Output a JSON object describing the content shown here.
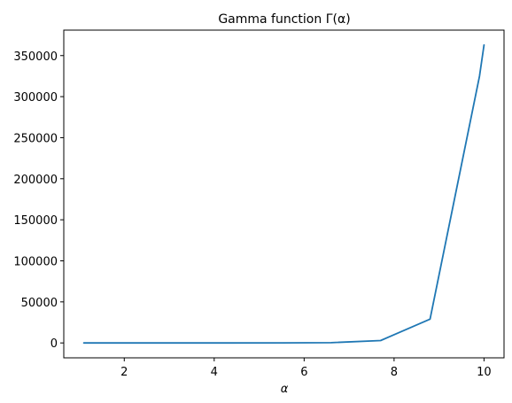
{
  "chart_data": {
    "type": "line",
    "title": "Gamma function Γ(α)",
    "xlabel": "α",
    "ylabel": "",
    "xlim": [
      0.655,
      10.445
    ],
    "ylim": [
      -18144,
      381024
    ],
    "x_ticks": [
      2,
      4,
      6,
      8,
      10
    ],
    "x_tick_labels": [
      "2",
      "4",
      "6",
      "8",
      "10"
    ],
    "y_ticks": [
      0,
      50000,
      100000,
      150000,
      200000,
      250000,
      300000,
      350000
    ],
    "y_tick_labels": [
      "0",
      "50000",
      "100000",
      "150000",
      "200000",
      "250000",
      "300000",
      "350000"
    ],
    "grid": false,
    "legend": "none",
    "series": [
      {
        "color": "#1f77b4",
        "x": [
          1.1,
          2.2,
          3.3,
          4.4,
          5.5,
          6.6,
          7.7,
          8.8,
          9.9,
          10.0
        ],
        "y": [
          0.95,
          1.1,
          2.7,
          10.1,
          52.3,
          350,
          2900,
          29000,
          325000,
          362880
        ]
      }
    ]
  }
}
